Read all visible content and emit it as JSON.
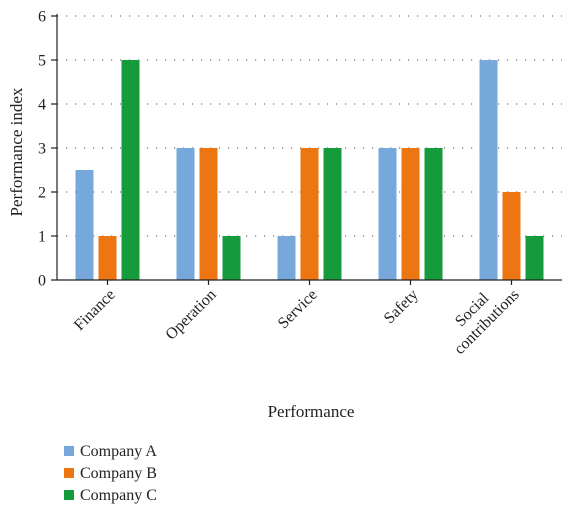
{
  "chart_data": {
    "type": "bar",
    "title": "",
    "xlabel": "Performance",
    "ylabel": "Performance index",
    "ylim": [
      0,
      6
    ],
    "yticks": [
      0,
      1,
      2,
      3,
      4,
      5,
      6
    ],
    "grid": true,
    "legend_position": "bottom-left",
    "categories": [
      "Finance",
      "Operation",
      "Service",
      "Safety",
      "Social\ncontributions"
    ],
    "series": [
      {
        "name": "Company A",
        "color": "#77a8dc",
        "values": [
          2.5,
          3,
          1,
          3,
          5
        ]
      },
      {
        "name": "Company B",
        "color": "#ee7612",
        "values": [
          1,
          3,
          3,
          3,
          2
        ]
      },
      {
        "name": "Company C",
        "color": "#159a3c",
        "values": [
          5,
          1,
          3,
          3,
          1
        ]
      }
    ]
  }
}
